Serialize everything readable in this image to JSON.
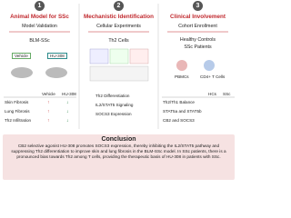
{
  "panels": [
    {
      "number": "1",
      "title": "Animal Model for SSc",
      "subtitle": "Model Validation",
      "model": "BLM-SSc",
      "groups": [
        "Vehicle",
        "HU-308"
      ],
      "table": {
        "header": [
          "Vehicle",
          "HU-308"
        ],
        "rows": [
          [
            "Skin Fibrosis",
            "↑",
            "↓"
          ],
          [
            "Lung Fibrosis",
            "↑",
            "↓"
          ],
          [
            "Th2  Infiltration",
            "↑",
            "↓"
          ]
        ]
      }
    },
    {
      "number": "2",
      "title": "Mechanistic Identification",
      "subtitle": "Cellular Experiments",
      "cells": "Th2 Cells",
      "items": [
        "Th2 Differentiation",
        "IL2/STAT5 Signaling",
        "SOCS3 Expression"
      ]
    },
    {
      "number": "3",
      "title": "Clinical Involvement",
      "subtitle": "Cohort Enrollment",
      "cohorts": [
        "Healthy Controls",
        "SSc Patients"
      ],
      "samples": [
        "PBMCs",
        "CD4+ T Cells"
      ],
      "table": {
        "header": [
          "HCs",
          "SSc"
        ],
        "rows": [
          [
            "Th2/Th1 Balance",
            "",
            ""
          ],
          [
            "STAT5a and STAT5b",
            "",
            ""
          ],
          [
            "CB2 and SOCS3",
            "",
            ""
          ]
        ]
      }
    }
  ],
  "conclusion": {
    "title": "Conclusion",
    "text": "CB2 selective agonist HU-308 promotes SOCS3 expression, thereby inhibiting the IL2/STAT5 pathway and suppressing Th2 differentiation to improve skin and lung fibrosis in the BLM-SSc model. In SSc patients, there is a pronounced bias towards Th2 among T cells, providing the therapeutic basis of HU-308 in patients with SSc."
  }
}
